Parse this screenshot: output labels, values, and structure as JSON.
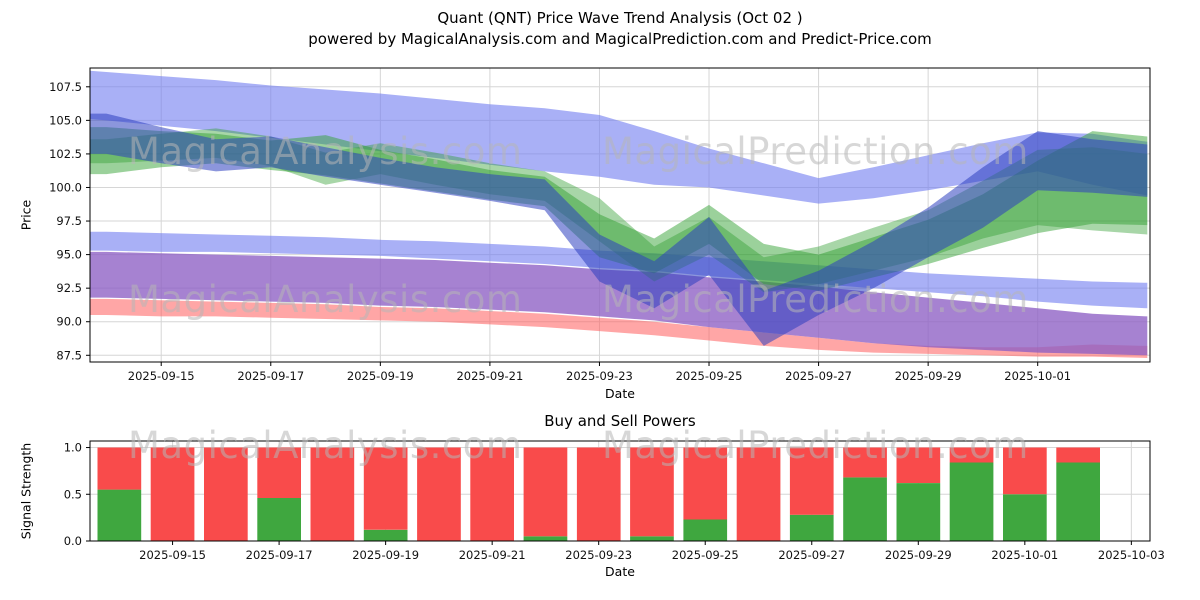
{
  "page": {
    "title_line1": "Quant (QNT) Price Wave Trend Analysis (Oct 02 )",
    "title_line2": "powered by MagicalAnalysis.com and MagicalPrediction.com and Predict-Price.com"
  },
  "watermarks": {
    "left_text": "MagicalAnalysis.com",
    "right_text": "MagicalPrediction.com"
  },
  "chart_data": [
    {
      "type": "area",
      "name": "price-wave-trend",
      "title": "",
      "xlabel": "Date",
      "ylabel": "Price",
      "grid": true,
      "legend": "none",
      "ylim": [
        87.0,
        108.9
      ],
      "xlim_days": [
        -0.3,
        19.05
      ],
      "y_ticks": [
        87.5,
        90.0,
        92.5,
        95.0,
        97.5,
        100.0,
        102.5,
        105.0,
        107.5
      ],
      "x_ticks": [
        {
          "day": 1,
          "label": "2025-09-15"
        },
        {
          "day": 3,
          "label": "2025-09-17"
        },
        {
          "day": 5,
          "label": "2025-09-19"
        },
        {
          "day": 7,
          "label": "2025-09-21"
        },
        {
          "day": 9,
          "label": "2025-09-23"
        },
        {
          "day": 11,
          "label": "2025-09-25"
        },
        {
          "day": 13,
          "label": "2025-09-27"
        },
        {
          "day": 15,
          "label": "2025-09-29"
        },
        {
          "day": 17,
          "label": "2025-10-01"
        }
      ],
      "days": [
        -0.3,
        0,
        1,
        2,
        3,
        4,
        5,
        6,
        7,
        8,
        9,
        10,
        11,
        12,
        13,
        14,
        15,
        16,
        17,
        18,
        19
      ],
      "bands": [
        {
          "name": "upper-forecast-band-blue",
          "color": "#7580f0",
          "opacity": 0.62,
          "lower": [
            105.1,
            105.0,
            104.6,
            104.2,
            103.7,
            103.2,
            102.7,
            102.2,
            101.7,
            101.2,
            100.8,
            100.2,
            100.0,
            99.4,
            98.8,
            99.2,
            99.8,
            100.5,
            101.2,
            100.2,
            99.4
          ],
          "upper": [
            108.7,
            108.6,
            108.3,
            108.0,
            107.6,
            107.3,
            107.0,
            106.6,
            106.2,
            105.9,
            105.4,
            104.2,
            102.9,
            101.8,
            100.7,
            101.5,
            102.4,
            103.3,
            104.1,
            104.0,
            103.4
          ]
        },
        {
          "name": "mid-forecast-band-blue",
          "color": "#7580f0",
          "opacity": 0.62,
          "lower": [
            95.3,
            95.3,
            95.2,
            95.2,
            95.1,
            95.0,
            94.9,
            94.7,
            94.5,
            94.3,
            94.0,
            93.8,
            93.4,
            93.1,
            92.8,
            92.5,
            92.2,
            91.9,
            91.5,
            91.2,
            91.0
          ],
          "upper": [
            96.7,
            96.7,
            96.6,
            96.5,
            96.4,
            96.3,
            96.1,
            96.0,
            95.8,
            95.6,
            95.3,
            95.1,
            94.8,
            94.5,
            94.2,
            93.9,
            93.6,
            93.4,
            93.2,
            93.0,
            92.9
          ]
        },
        {
          "name": "lower-band-red",
          "color": "#ff5c5c",
          "opacity": 0.55,
          "lower": [
            90.5,
            90.5,
            90.4,
            90.4,
            90.3,
            90.2,
            90.1,
            90.0,
            89.8,
            89.6,
            89.3,
            89.0,
            88.6,
            88.2,
            87.9,
            87.7,
            87.6,
            87.5,
            87.4,
            87.4,
            87.3
          ],
          "upper": [
            91.7,
            91.7,
            91.6,
            91.5,
            91.4,
            91.3,
            91.1,
            91.0,
            90.8,
            90.6,
            90.3,
            90.0,
            89.6,
            89.2,
            88.8,
            88.4,
            88.2,
            88.1,
            88.1,
            88.3,
            88.2
          ]
        },
        {
          "name": "support-band-purple",
          "color": "#8d5fc4",
          "opacity": 0.78,
          "lower": [
            91.8,
            91.8,
            91.7,
            91.6,
            91.5,
            91.4,
            91.2,
            91.1,
            90.9,
            90.7,
            90.4,
            90.1,
            89.6,
            89.2,
            88.8,
            88.4,
            88.1,
            87.9,
            87.7,
            87.6,
            87.5
          ],
          "upper": [
            95.2,
            95.2,
            95.1,
            95.0,
            94.9,
            94.8,
            94.7,
            94.6,
            94.4,
            94.2,
            93.9,
            93.7,
            93.3,
            93.0,
            92.6,
            92.2,
            91.8,
            91.4,
            91.0,
            90.6,
            90.4
          ]
        },
        {
          "name": "trend-band-green-a",
          "color": "#2f9e2f",
          "opacity": 0.48,
          "lower": [
            101.0,
            101.0,
            101.5,
            101.8,
            101.3,
            100.9,
            100.3,
            99.7,
            99.1,
            98.6,
            94.8,
            93.6,
            95.8,
            92.8,
            92.3,
            93.3,
            94.3,
            95.5,
            96.6,
            97.3,
            97.2
          ],
          "upper": [
            104.5,
            104.5,
            104.2,
            104.0,
            103.5,
            103.9,
            102.8,
            102.1,
            101.3,
            100.8,
            98.0,
            96.2,
            98.7,
            95.8,
            95.0,
            96.3,
            97.6,
            99.5,
            102.0,
            104.2,
            103.8
          ]
        },
        {
          "name": "trend-band-green-b",
          "color": "#2f9e2f",
          "opacity": 0.42,
          "lower": [
            101.8,
            101.8,
            102.0,
            102.2,
            101.6,
            100.2,
            101.0,
            100.2,
            99.5,
            99.0,
            96.0,
            93.0,
            95.0,
            92.2,
            92.8,
            93.8,
            94.8,
            96.2,
            97.2,
            96.8,
            96.5
          ],
          "upper": [
            103.6,
            103.6,
            104.0,
            104.4,
            103.8,
            102.6,
            103.3,
            102.6,
            101.8,
            101.2,
            99.2,
            95.6,
            97.8,
            94.8,
            95.6,
            97.0,
            98.3,
            100.5,
            102.8,
            103.0,
            102.5
          ]
        },
        {
          "name": "wave-band-dark-blue",
          "color": "#2e3fbf",
          "opacity": 0.55,
          "lower": [
            102.5,
            102.5,
            101.8,
            101.2,
            101.5,
            100.8,
            100.2,
            99.6,
            99.0,
            98.3,
            93.0,
            91.0,
            93.5,
            88.2,
            90.5,
            92.5,
            94.8,
            97.0,
            99.8,
            99.6,
            99.3
          ],
          "upper": [
            105.5,
            105.5,
            104.5,
            103.6,
            103.8,
            103.0,
            102.2,
            101.5,
            101.0,
            100.6,
            96.5,
            94.5,
            97.8,
            92.3,
            93.8,
            96.0,
            98.5,
            101.5,
            104.2,
            103.6,
            103.2
          ]
        }
      ]
    },
    {
      "type": "bar",
      "name": "buy-sell-powers",
      "title": "Buy and Sell Powers",
      "xlabel": "Date",
      "ylabel": "Signal Strength",
      "grid": true,
      "stacked": true,
      "legend": "none",
      "ylim": [
        0,
        1.07
      ],
      "xlim_days": [
        -0.55,
        19.35
      ],
      "y_ticks": [
        0.0,
        0.5,
        1.0
      ],
      "x_ticks": [
        {
          "day": 1,
          "label": "2025-09-15"
        },
        {
          "day": 3,
          "label": "2025-09-17"
        },
        {
          "day": 5,
          "label": "2025-09-19"
        },
        {
          "day": 7,
          "label": "2025-09-21"
        },
        {
          "day": 9,
          "label": "2025-09-23"
        },
        {
          "day": 11,
          "label": "2025-09-25"
        },
        {
          "day": 13,
          "label": "2025-09-27"
        },
        {
          "day": 15,
          "label": "2025-09-29"
        },
        {
          "day": 17,
          "label": "2025-10-01"
        },
        {
          "day": 19,
          "label": "2025-10-03"
        }
      ],
      "dates": [
        "2025-09-14",
        "2025-09-15",
        "2025-09-16",
        "2025-09-17",
        "2025-09-18",
        "2025-09-19",
        "2025-09-20",
        "2025-09-21",
        "2025-09-22",
        "2025-09-23",
        "2025-09-24",
        "2025-09-25",
        "2025-09-26",
        "2025-09-27",
        "2025-09-28",
        "2025-09-29",
        "2025-09-30",
        "2025-10-01",
        "2025-10-02"
      ],
      "bar_days": [
        0,
        1,
        2,
        3,
        4,
        5,
        6,
        7,
        8,
        9,
        10,
        11,
        12,
        13,
        14,
        15,
        16,
        17,
        18
      ],
      "bar_width_days": 0.82,
      "series": [
        {
          "name": "Buy",
          "color": "#3fa73f",
          "values": [
            0.55,
            0,
            0,
            0.46,
            0,
            0.12,
            0,
            0,
            0.05,
            0,
            0.05,
            0.23,
            0,
            0.28,
            0.68,
            0.62,
            0.84,
            0.5,
            0.84
          ]
        },
        {
          "name": "Sell",
          "color": "#f94b4b",
          "values": [
            0.45,
            1,
            1,
            0.54,
            1,
            0.88,
            1,
            1,
            0.95,
            1,
            0.95,
            0.77,
            1,
            0.72,
            0.32,
            0.38,
            0.16,
            0.5,
            0.16
          ]
        }
      ]
    }
  ]
}
